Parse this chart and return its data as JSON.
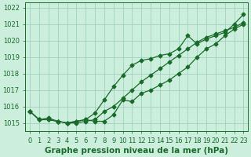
{
  "title": "Graphe pression niveau de la mer (hPa)",
  "background_color": "#cceedd",
  "line_color": "#1a6b2a",
  "grid_color": "#99ccbb",
  "hours": [
    0,
    1,
    2,
    3,
    4,
    5,
    6,
    7,
    8,
    9,
    10,
    11,
    12,
    13,
    14,
    15,
    16,
    17,
    18,
    19,
    20,
    21,
    22,
    23
  ],
  "series1": [
    1015.7,
    1015.2,
    1015.3,
    1015.1,
    1015.0,
    1015.0,
    1015.1,
    1015.2,
    1015.7,
    1016.0,
    1016.5,
    1017.0,
    1017.5,
    1017.9,
    1018.3,
    1018.7,
    1019.1,
    1019.5,
    1019.9,
    1020.2,
    1020.4,
    1020.6,
    1020.8,
    1021.1
  ],
  "series2": [
    1015.7,
    1015.2,
    1015.2,
    1015.1,
    1015.0,
    1015.1,
    1015.2,
    1015.6,
    1016.4,
    1017.2,
    1017.9,
    1018.5,
    1018.8,
    1018.9,
    1019.1,
    1019.2,
    1019.5,
    1020.3,
    1019.8,
    1020.1,
    1020.3,
    1020.5,
    1021.0,
    1021.6
  ],
  "series3": [
    1015.7,
    1015.2,
    1015.2,
    1015.1,
    1015.0,
    1015.1,
    1015.2,
    1015.1,
    1015.1,
    1015.5,
    1016.4,
    1016.3,
    1016.8,
    1017.0,
    1017.3,
    1017.6,
    1018.0,
    1018.4,
    1019.0,
    1019.5,
    1019.8,
    1020.3,
    1020.7,
    1021.0
  ],
  "ylim": [
    1014.5,
    1022.3
  ],
  "yticks": [
    1015,
    1016,
    1017,
    1018,
    1019,
    1020,
    1021,
    1022
  ],
  "marker": "D",
  "marker_size": 2.5,
  "linewidth": 0.9,
  "title_fontsize": 7.5,
  "tick_fontsize": 6.0,
  "fig_width": 3.2,
  "fig_height": 2.0,
  "dpi": 100
}
